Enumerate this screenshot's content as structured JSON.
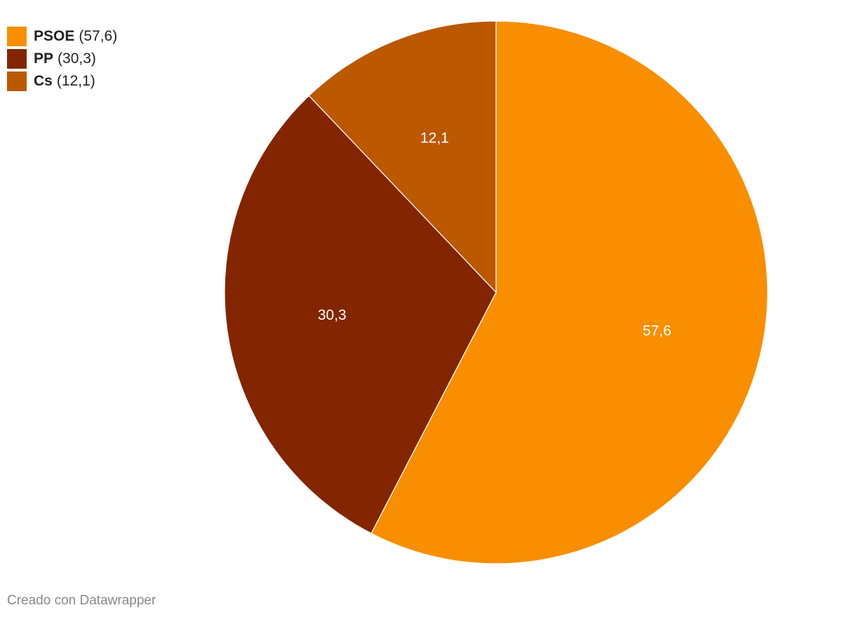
{
  "chart_data": {
    "type": "pie",
    "categories": [
      "PSOE",
      "PP",
      "Cs"
    ],
    "values": [
      57.6,
      30.3,
      12.1
    ],
    "value_labels": [
      "57,6",
      "30,3",
      "12,1"
    ],
    "legend_labels": [
      "(57,6)",
      "(30,3)",
      "(12,1)"
    ],
    "colors": [
      "#f88e00",
      "#832500",
      "#bb5800"
    ],
    "legend": "top-left",
    "footer": "Creado con Datawrapper"
  }
}
